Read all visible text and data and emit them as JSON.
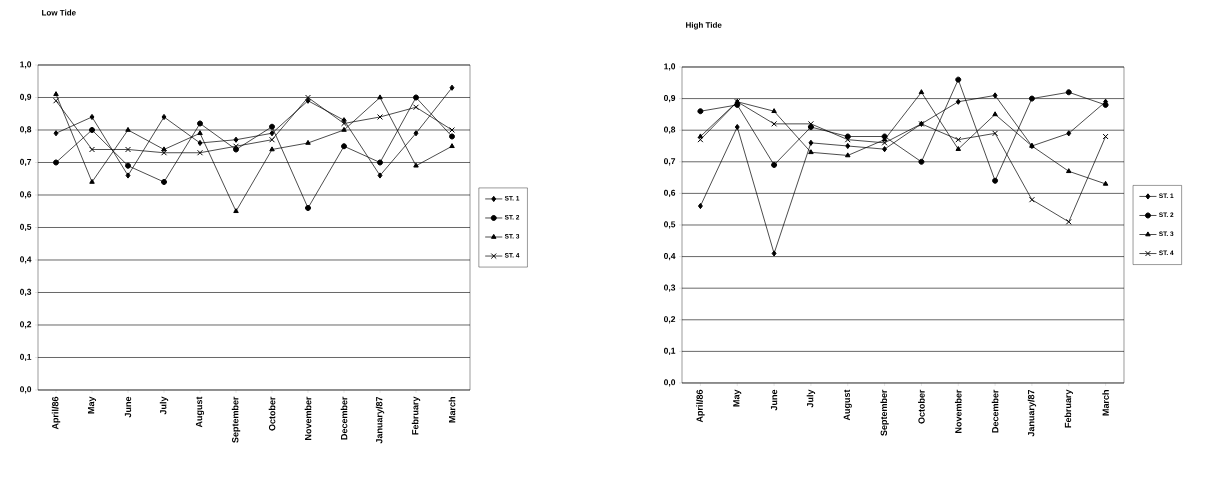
{
  "chart_data": [
    {
      "type": "line",
      "title": "Low Tide",
      "categories": [
        "April/86",
        "May",
        "June",
        "July",
        "August",
        "September",
        "October",
        "November",
        "December",
        "January/87",
        "February",
        "March"
      ],
      "ylim": [
        0,
        1
      ],
      "yticks": [
        {
          "value": 0,
          "label": "0,0"
        },
        {
          "value": 0.1,
          "label": "0,1"
        },
        {
          "value": 0.2,
          "label": "0,2"
        },
        {
          "value": 0.3,
          "label": "0,3"
        },
        {
          "value": 0.4,
          "label": "0,4"
        },
        {
          "value": 0.5,
          "label": "0,5"
        },
        {
          "value": 0.6,
          "label": "0,6"
        },
        {
          "value": 0.7,
          "label": "0,7"
        },
        {
          "value": 0.8,
          "label": "0,8"
        },
        {
          "value": 0.9,
          "label": "0,9"
        },
        {
          "value": 1,
          "label": "1,0"
        }
      ],
      "grid": "y",
      "legend": "right",
      "series": [
        {
          "name": "ST. 1",
          "color": "#000000",
          "marker": "diamond",
          "values": [
            0.79,
            0.84,
            0.66,
            0.84,
            0.76,
            0.77,
            0.79,
            0.89,
            0.83,
            0.66,
            0.79,
            0.93
          ]
        },
        {
          "name": "ST. 2",
          "color": "#000000",
          "marker": "circle",
          "values": [
            0.7,
            0.8,
            0.69,
            0.64,
            0.82,
            0.74,
            0.81,
            0.56,
            0.75,
            0.7,
            0.9,
            0.78
          ]
        },
        {
          "name": "ST. 3",
          "color": "#000000",
          "marker": "triangle",
          "values": [
            0.91,
            0.64,
            0.8,
            0.74,
            0.79,
            0.55,
            0.74,
            0.76,
            0.8,
            0.9,
            0.69,
            0.75
          ]
        },
        {
          "name": "ST. 4",
          "color": "#000000",
          "marker": "cross",
          "values": [
            0.89,
            0.74,
            0.74,
            0.73,
            0.73,
            0.75,
            0.77,
            0.9,
            0.82,
            0.84,
            0.87,
            0.8
          ]
        }
      ]
    },
    {
      "type": "line",
      "title": "High Tide",
      "categories": [
        "April/86",
        "May",
        "June",
        "July",
        "August",
        "September",
        "October",
        "November",
        "December",
        "January/87",
        "February",
        "March"
      ],
      "ylim": [
        0,
        1
      ],
      "yticks": [
        {
          "value": 0,
          "label": "0,0"
        },
        {
          "value": 0.1,
          "label": "0,1"
        },
        {
          "value": 0.2,
          "label": "0,2"
        },
        {
          "value": 0.3,
          "label": "0,3"
        },
        {
          "value": 0.4,
          "label": "0,4"
        },
        {
          "value": 0.5,
          "label": "0,5"
        },
        {
          "value": 0.6,
          "label": "0,6"
        },
        {
          "value": 0.7,
          "label": "0,7"
        },
        {
          "value": 0.8,
          "label": "0,8"
        },
        {
          "value": 0.9,
          "label": "0,9"
        },
        {
          "value": 1,
          "label": "1,0"
        }
      ],
      "grid": "y",
      "legend": "right",
      "series": [
        {
          "name": "ST. 1",
          "color": "#000000",
          "marker": "diamond",
          "values": [
            0.56,
            0.81,
            0.41,
            0.76,
            0.75,
            0.74,
            0.82,
            0.89,
            0.91,
            0.75,
            0.79,
            0.89
          ]
        },
        {
          "name": "ST. 2",
          "color": "#000000",
          "marker": "circle",
          "values": [
            0.86,
            0.88,
            0.69,
            0.81,
            0.78,
            0.78,
            0.7,
            0.96,
            0.64,
            0.9,
            0.92,
            0.88
          ]
        },
        {
          "name": "ST. 3",
          "color": "#000000",
          "marker": "triangle",
          "values": [
            0.78,
            0.89,
            0.86,
            0.73,
            0.72,
            0.77,
            0.92,
            0.74,
            0.85,
            0.75,
            0.67,
            0.63
          ]
        },
        {
          "name": "ST. 4",
          "color": "#000000",
          "marker": "cross",
          "values": [
            0.77,
            0.89,
            0.82,
            0.82,
            0.77,
            0.76,
            0.82,
            0.77,
            0.79,
            0.58,
            0.51,
            0.78
          ]
        }
      ]
    }
  ]
}
